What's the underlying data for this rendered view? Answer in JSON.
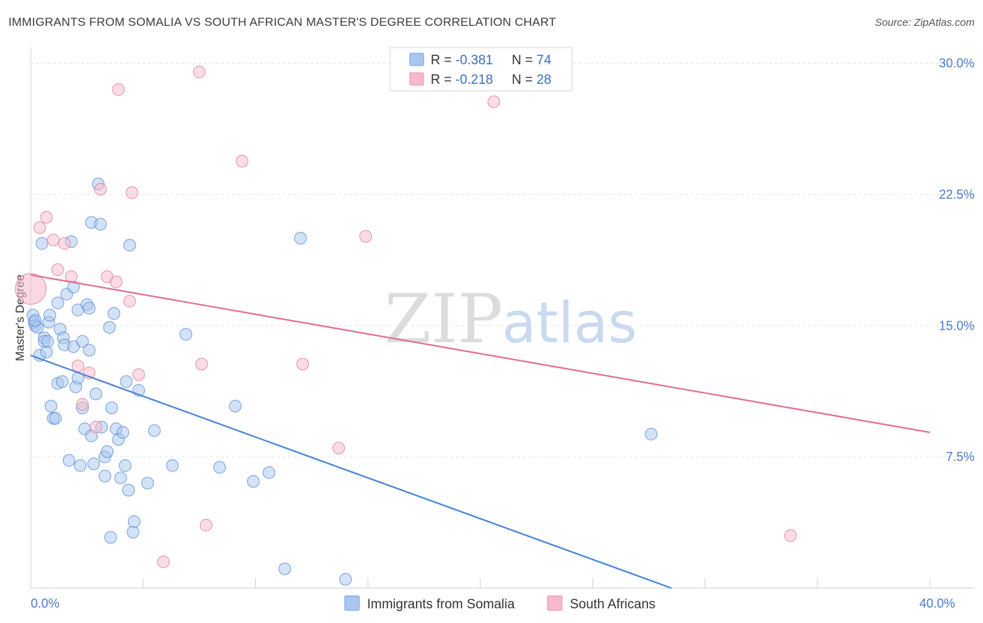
{
  "header": {
    "title": "IMMIGRANTS FROM SOMALIA VS SOUTH AFRICAN MASTER'S DEGREE CORRELATION CHART",
    "source": "Source: ZipAtlas.com"
  },
  "watermark": {
    "zip": "ZIP",
    "atlas": "atlas"
  },
  "legend": {
    "rows": [
      {
        "r_label": "R = ",
        "r_value": "-0.381",
        "n_label": "N = ",
        "n_value": "74",
        "color": "#a9c6ee"
      },
      {
        "r_label": "R = ",
        "r_value": "-0.218",
        "n_label": "N = ",
        "n_value": "28",
        "color": "#f6b9ca"
      }
    ]
  },
  "bottom_legend": {
    "items": [
      {
        "label": "Immigrants from Somalia",
        "color": "#a9c6ee"
      },
      {
        "label": "South Africans",
        "color": "#f6b9ca"
      }
    ]
  },
  "chart_data": {
    "type": "scatter",
    "xlabel": "",
    "ylabel": "Master's Degree",
    "xlim": [
      0,
      40
    ],
    "ylim": [
      0,
      30.5
    ],
    "x_tick_labels": [
      {
        "value": 0,
        "label": "0.0%"
      },
      {
        "value": 40,
        "label": "40.0%"
      }
    ],
    "y_tick_labels": [
      {
        "value": 7.5,
        "label": "7.5%"
      },
      {
        "value": 15,
        "label": "15.0%"
      },
      {
        "value": 22.5,
        "label": "22.5%"
      },
      {
        "value": 30,
        "label": "30.0%"
      }
    ],
    "grid": true,
    "series": [
      {
        "name": "Immigrants from Somalia",
        "color": "#4a84d6",
        "fill": "#a9c6ee",
        "trend": {
          "x0": 0,
          "y0": 13.3,
          "x1": 28.5,
          "y1": 0
        },
        "points": [
          [
            0.1,
            15.6
          ],
          [
            0.15,
            15.2
          ],
          [
            0.2,
            15.0
          ],
          [
            0.3,
            14.9
          ],
          [
            0.4,
            13.3
          ],
          [
            0.5,
            19.7
          ],
          [
            0.6,
            14.3
          ],
          [
            0.6,
            14.1
          ],
          [
            0.7,
            13.5
          ],
          [
            0.75,
            14.1
          ],
          [
            0.8,
            15.2
          ],
          [
            0.85,
            15.6
          ],
          [
            0.9,
            10.4
          ],
          [
            1.0,
            9.7
          ],
          [
            1.1,
            9.7
          ],
          [
            1.2,
            11.7
          ],
          [
            1.2,
            16.3
          ],
          [
            1.3,
            14.8
          ],
          [
            1.4,
            11.8
          ],
          [
            1.45,
            14.3
          ],
          [
            1.5,
            13.9
          ],
          [
            1.6,
            16.8
          ],
          [
            1.7,
            7.3
          ],
          [
            1.8,
            19.8
          ],
          [
            1.9,
            13.8
          ],
          [
            1.9,
            17.2
          ],
          [
            2.0,
            11.5
          ],
          [
            2.1,
            12.0
          ],
          [
            2.1,
            15.9
          ],
          [
            2.2,
            7.0
          ],
          [
            2.3,
            10.3
          ],
          [
            2.3,
            14.1
          ],
          [
            2.4,
            9.1
          ],
          [
            2.5,
            16.2
          ],
          [
            2.6,
            16.0
          ],
          [
            2.6,
            13.6
          ],
          [
            2.7,
            8.7
          ],
          [
            2.7,
            20.9
          ],
          [
            2.8,
            7.1
          ],
          [
            2.9,
            11.1
          ],
          [
            3.0,
            23.1
          ],
          [
            3.1,
            20.8
          ],
          [
            3.15,
            9.2
          ],
          [
            3.3,
            7.5
          ],
          [
            3.3,
            6.4
          ],
          [
            3.4,
            7.8
          ],
          [
            3.5,
            14.9
          ],
          [
            3.55,
            2.9
          ],
          [
            3.6,
            10.3
          ],
          [
            3.7,
            15.7
          ],
          [
            3.8,
            9.1
          ],
          [
            3.9,
            8.5
          ],
          [
            4.0,
            6.3
          ],
          [
            4.1,
            8.9
          ],
          [
            4.2,
            7.0
          ],
          [
            4.25,
            11.8
          ],
          [
            4.35,
            5.6
          ],
          [
            4.4,
            19.6
          ],
          [
            4.55,
            3.2
          ],
          [
            4.6,
            3.8
          ],
          [
            4.8,
            11.3
          ],
          [
            5.2,
            6.0
          ],
          [
            5.5,
            9.0
          ],
          [
            6.3,
            7.0
          ],
          [
            6.9,
            14.5
          ],
          [
            8.4,
            6.9
          ],
          [
            9.1,
            10.4
          ],
          [
            9.9,
            6.1
          ],
          [
            10.6,
            6.6
          ],
          [
            11.3,
            1.1
          ],
          [
            12.0,
            20.0
          ],
          [
            14.0,
            0.5
          ],
          [
            27.6,
            8.8
          ],
          [
            0.2,
            15.3
          ]
        ]
      },
      {
        "name": "South Africans",
        "color": "#e27094",
        "fill": "#f6b9ca",
        "trend": {
          "x0": 0,
          "y0": 17.9,
          "x1": 40,
          "y1": 8.9
        },
        "points": [
          [
            0.0,
            17.1
          ],
          [
            0.4,
            20.6
          ],
          [
            0.7,
            21.2
          ],
          [
            1.0,
            19.9
          ],
          [
            1.2,
            18.2
          ],
          [
            1.5,
            19.7
          ],
          [
            1.8,
            17.8
          ],
          [
            2.1,
            12.7
          ],
          [
            2.3,
            10.5
          ],
          [
            2.6,
            12.3
          ],
          [
            2.9,
            9.2
          ],
          [
            3.1,
            22.8
          ],
          [
            3.4,
            17.8
          ],
          [
            3.8,
            17.5
          ],
          [
            3.9,
            28.5
          ],
          [
            4.4,
            16.4
          ],
          [
            4.5,
            22.6
          ],
          [
            4.8,
            12.2
          ],
          [
            5.9,
            1.5
          ],
          [
            7.5,
            29.5
          ],
          [
            7.6,
            12.8
          ],
          [
            7.8,
            3.6
          ],
          [
            9.4,
            24.4
          ],
          [
            12.1,
            12.8
          ],
          [
            13.7,
            8.0
          ],
          [
            14.9,
            20.1
          ],
          [
            20.6,
            27.8
          ],
          [
            33.8,
            3.0
          ]
        ]
      }
    ]
  }
}
